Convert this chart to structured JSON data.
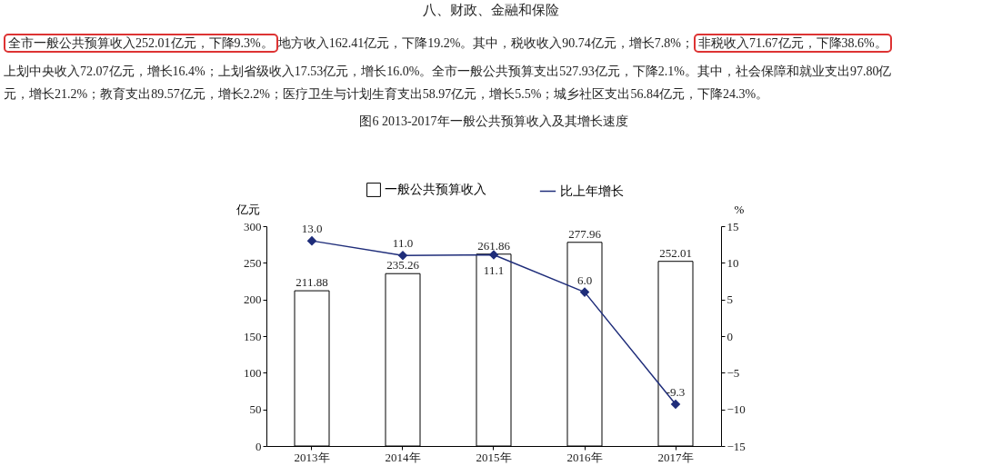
{
  "chart_data": {
    "type": "bar",
    "title": "图6 2013-2017年一般公共预算收入及其增长速度",
    "categories": [
      "2013年",
      "2014年",
      "2015年",
      "2016年",
      "2017年"
    ],
    "series": [
      {
        "name": "一般公共预算收入",
        "type": "bar",
        "color": "#ffffff",
        "values": [
          211.88,
          235.26,
          261.86,
          277.96,
          252.01
        ]
      },
      {
        "name": "比上年增长",
        "type": "line",
        "axis": "y2",
        "color": "#1f2d7a",
        "values": [
          13.0,
          11.0,
          11.1,
          6.0,
          -9.3
        ],
        "value_labels": [
          "13.0",
          "11.0",
          "11.1",
          "6.0",
          "-9.3"
        ]
      }
    ],
    "data_labels": true,
    "ylabel": "亿元",
    "y2label": "%",
    "ylim": [
      0,
      300
    ],
    "yticks": [
      0,
      50,
      100,
      150,
      200,
      250,
      300
    ],
    "y2lim": [
      -15,
      15
    ],
    "y2ticks": [
      -15,
      -10,
      -5,
      0,
      5,
      10,
      15
    ],
    "marker": "diamond",
    "legend": "top",
    "grid": false,
    "annotations": [
      "八、财政、金融和保险",
      "全市一般公共预算收入252.01亿元，下降9.3%。",
      "地方收入162.41亿元，下降19.2%。其中，税收收入90.74亿元，增长7.8%；",
      "非税收入71.67亿元，下降38.6%。",
      "上划中央收入72.07亿元，增长16.4%；上划省级收入17.53亿元，增长16.0%。全市一般公共预算支出527.93亿元，下降2.1%。其中，社会保障和就业支出97.80亿",
      "元，增长21.2%；教育支出89.57亿元，增长2.2%；医疗卫生与计划生育支出58.97亿元，增长5.5%；城乡社区支出56.84亿元，下降24.3%。"
    ]
  }
}
